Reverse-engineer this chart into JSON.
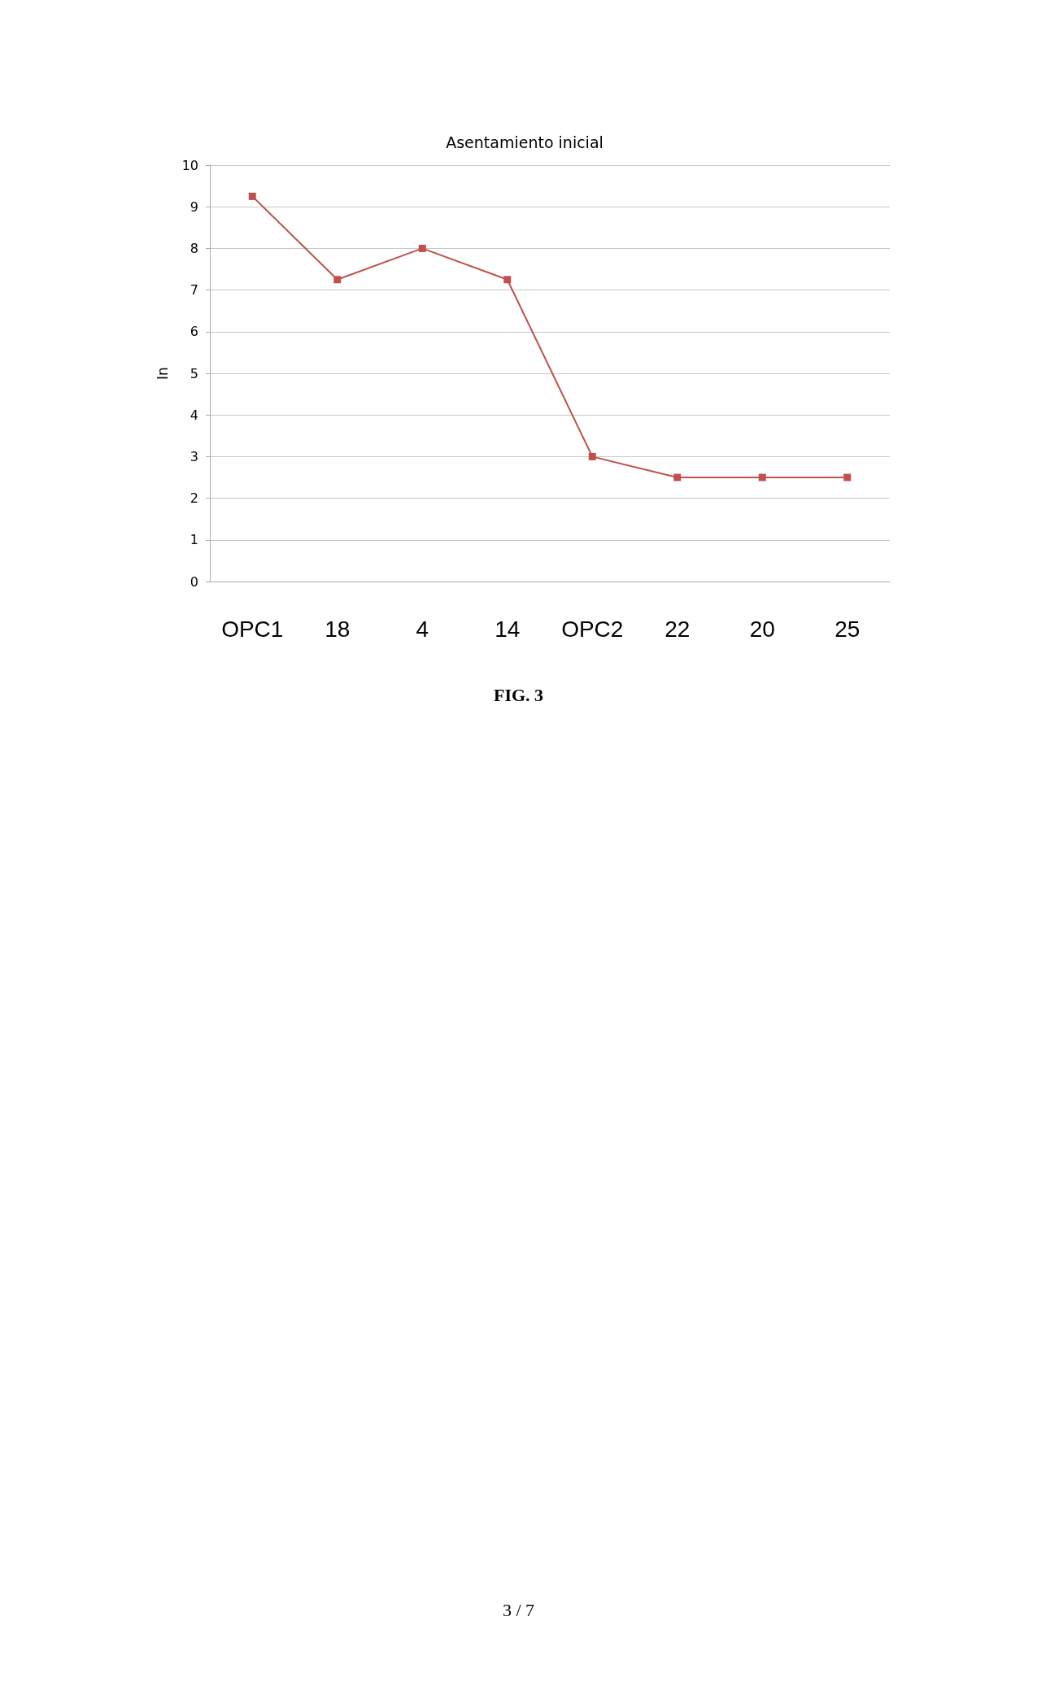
{
  "chart_data": {
    "type": "line",
    "title": "Asentamiento inicial",
    "ylabel": "In",
    "categories": [
      "OPC1",
      "18",
      "4",
      "14",
      "OPC2",
      "22",
      "20",
      "25"
    ],
    "series": [
      {
        "color": "#c0504d",
        "values": [
          9.25,
          7.25,
          8,
          7.25,
          3,
          2.5,
          2.5,
          2.5
        ]
      }
    ],
    "ylim": [
      0,
      10
    ],
    "yticks": [
      0,
      1,
      2,
      3,
      4,
      5,
      6,
      7,
      8,
      9,
      10
    ],
    "grid": "y",
    "marker": "square",
    "line_style": "solid",
    "annotations": [
      "FIG. 3",
      "3 / 7"
    ]
  }
}
